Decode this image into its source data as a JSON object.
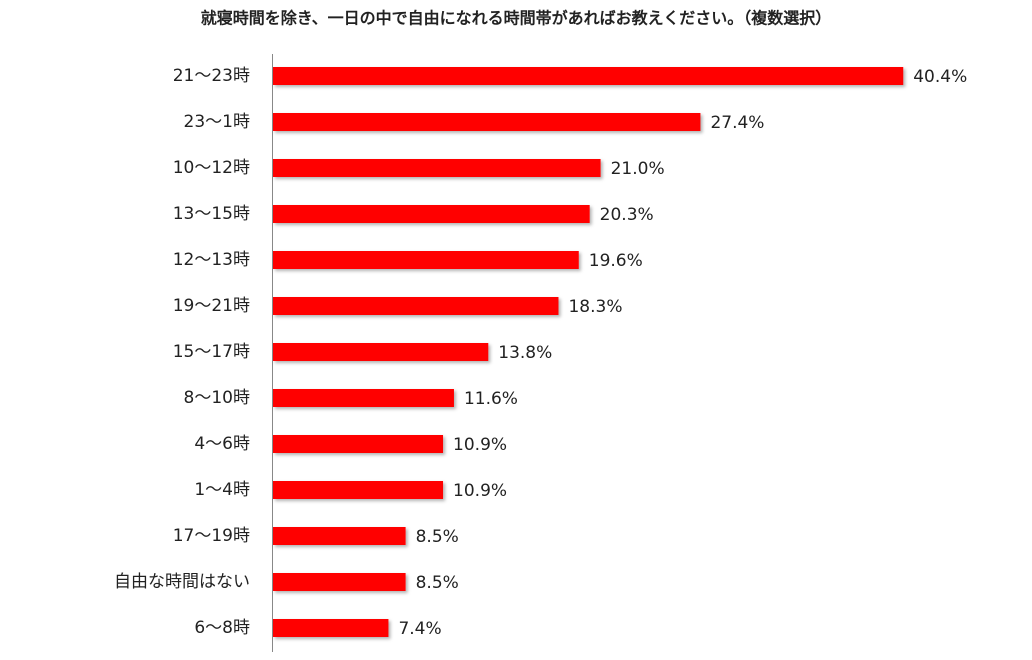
{
  "chart_data": {
    "type": "bar",
    "orientation": "horizontal",
    "title": "就寝時間を除き、一日の中で自由になれる時間帯があればお教えください。（複数選択）",
    "categories": [
      "21～23時",
      "23～1時",
      "10～12時",
      "13～15時",
      "12～13時",
      "19～21時",
      "15～17時",
      "8～10時",
      "4～6時",
      "1～4時",
      "17～19時",
      "自由な時間はない",
      "6～8時"
    ],
    "values": [
      40.4,
      27.4,
      21.0,
      20.3,
      19.6,
      18.3,
      13.8,
      11.6,
      10.9,
      10.9,
      8.5,
      8.5,
      7.4
    ],
    "value_labels": [
      "40.4%",
      "27.4%",
      "21.0%",
      "20.3%",
      "19.6%",
      "18.3%",
      "13.8%",
      "11.6%",
      "10.9%",
      "10.9%",
      "8.5%",
      "8.5%",
      "7.4%"
    ],
    "color": "#ff0000"
  }
}
